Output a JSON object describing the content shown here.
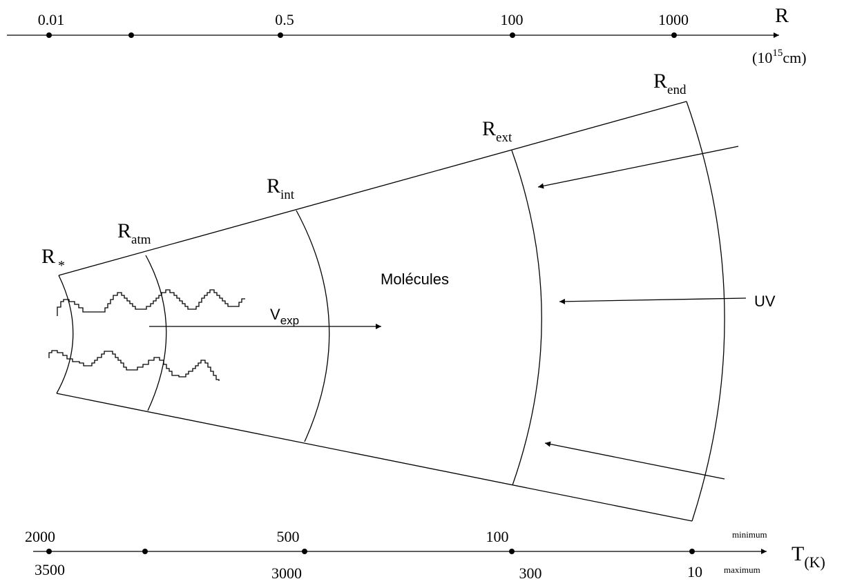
{
  "r_axis": {
    "symbol": "R",
    "unit_base": "(10",
    "unit_exp": "15",
    "unit_tail": "cm)",
    "ticks": [
      "0.01",
      "",
      "0.5",
      "100",
      "1000"
    ]
  },
  "t_axis": {
    "symbol": "T",
    "unit": "(K)",
    "row_min_label": "minimum",
    "row_max_label": "maximum",
    "min_values": [
      "2000",
      "",
      "500",
      "100",
      ""
    ],
    "max_values": [
      "3500",
      "",
      "3000",
      "300",
      "10"
    ]
  },
  "radii": {
    "star": {
      "base": "R",
      "sub": "*"
    },
    "atm": {
      "base": "R",
      "sub": "atm"
    },
    "int": {
      "base": "R",
      "sub": "int"
    },
    "ext": {
      "base": "R",
      "sub": "ext"
    },
    "end": {
      "base": "R",
      "sub": "end"
    }
  },
  "labels": {
    "molecules": "Molécules",
    "uv": "UV",
    "vexp_base": "V",
    "vexp_sub": "exp"
  }
}
